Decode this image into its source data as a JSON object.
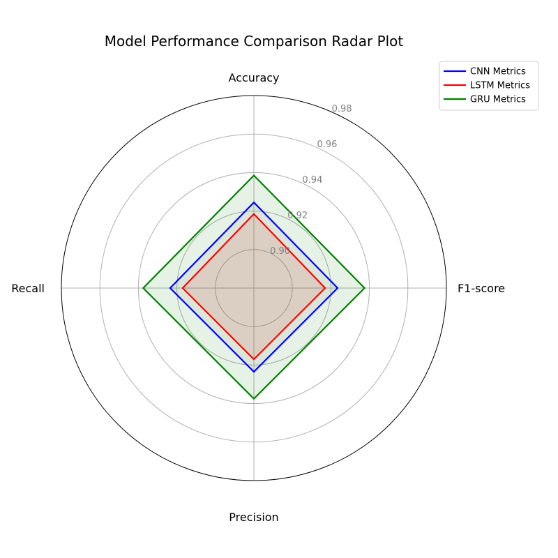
{
  "chart_data": {
    "type": "radar",
    "title": "Model Performance Comparison Radar Plot",
    "axes": [
      "Accuracy",
      "F1-score",
      "Precision",
      "Recall"
    ],
    "rlim": [
      0.88,
      0.98
    ],
    "r_ticks": [
      0.9,
      0.92,
      0.94,
      0.96,
      0.98
    ],
    "r_tick_labels": [
      "0.90",
      "0.92",
      "0.94",
      "0.96",
      "0.98"
    ],
    "grid": true,
    "legend_position": "top-right",
    "series": [
      {
        "name": "CNN Metrics",
        "color": "#0000ff",
        "fill_color": "#808080",
        "fill_opacity": 0.1,
        "values": [
          0.9245,
          0.9235,
          0.9235,
          0.9235
        ]
      },
      {
        "name": "LSTM Metrics",
        "color": "#ff0000",
        "fill_color": "#ff0000",
        "fill_opacity": 0.1,
        "values": [
          0.9185,
          0.917,
          0.917,
          0.917
        ]
      },
      {
        "name": "GRU Metrics",
        "color": "#008000",
        "fill_color": "#008000",
        "fill_opacity": 0.1,
        "values": [
          0.9385,
          0.9375,
          0.9375,
          0.9375
        ]
      }
    ]
  }
}
